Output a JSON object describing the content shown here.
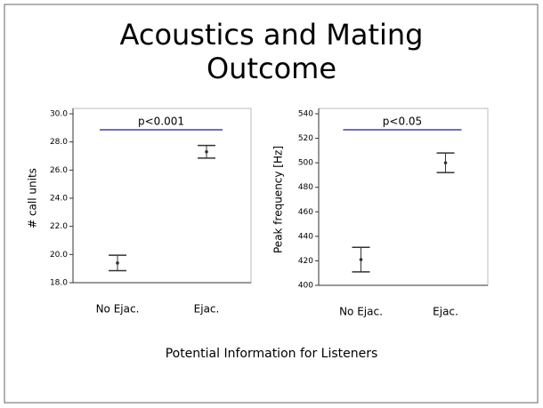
{
  "slide": {
    "title": "Acoustics and Mating Outcome",
    "caption": "Potential Information for Listeners"
  },
  "chart_data": [
    {
      "type": "errorbar",
      "ylabel": "# call units",
      "categories": [
        "No Ejac.",
        "Ejac."
      ],
      "values": [
        19.4,
        27.3
      ],
      "errors": [
        0.55,
        0.45
      ],
      "ylim": [
        18,
        30
      ],
      "yticks": [
        {
          "value": 18,
          "label": "18.0"
        },
        {
          "value": 20,
          "label": "20.0"
        },
        {
          "value": 22,
          "label": "22.0"
        },
        {
          "value": 24,
          "label": "24.0"
        },
        {
          "value": 26,
          "label": "26.0"
        },
        {
          "value": 28,
          "label": "28.0"
        },
        {
          "value": 30,
          "label": "30.0"
        }
      ],
      "annotation": "p<0.001",
      "annotation_color": "#1a1a8c",
      "color": "#333333"
    },
    {
      "type": "errorbar",
      "ylabel": "Peak frequency [Hz]",
      "categories": [
        "No Ejac.",
        "Ejac."
      ],
      "values": [
        421,
        500
      ],
      "errors": [
        10,
        8
      ],
      "ylim": [
        400,
        540
      ],
      "yticks": [
        400,
        420,
        440,
        460,
        480,
        500,
        520,
        540
      ],
      "annotation": "p<0.05",
      "annotation_color": "#1a1a8c",
      "color": "#333333"
    }
  ]
}
